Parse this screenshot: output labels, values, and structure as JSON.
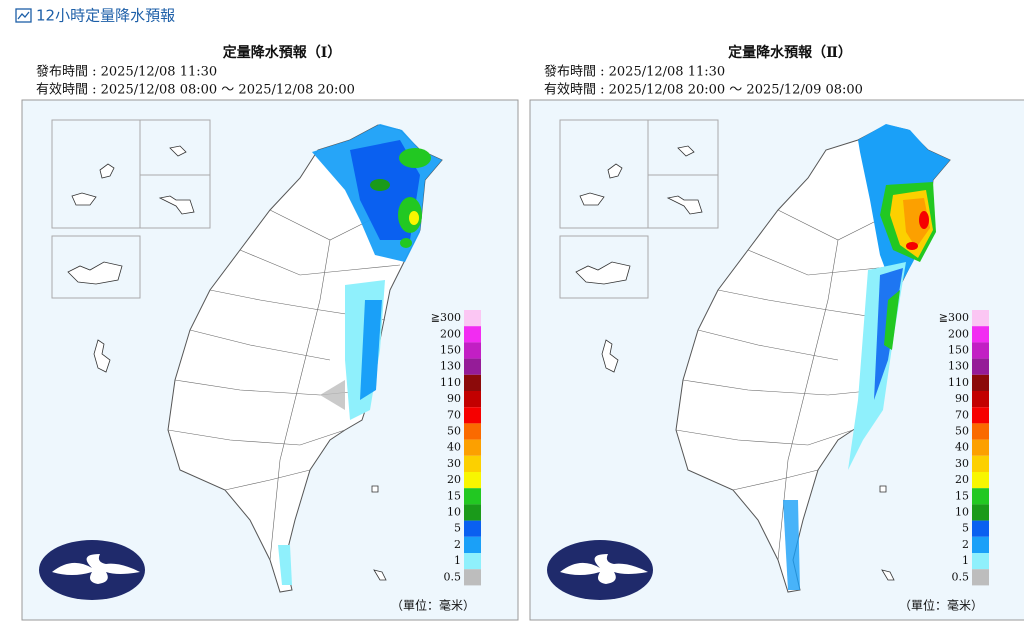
{
  "header": {
    "title": "12小時定量降水預報"
  },
  "panels": [
    {
      "title": "定量降水預報（Ⅰ）",
      "issued": "發布時間 : 2025/12/08 11:30",
      "valid": "有效時間 : 2025/12/08 08:00 ～ 2025/12/08 20:00"
    },
    {
      "title": "定量降水預報（Ⅱ）",
      "issued": "發布時間 : 2025/12/08 11:30",
      "valid": "有效時間 : 2025/12/08 20:00 ～ 2025/12/09 08:00"
    }
  ],
  "legend": {
    "labels": [
      "≧300",
      "200",
      "150",
      "130",
      "110",
      "90",
      "70",
      "50",
      "40",
      "30",
      "20",
      "15",
      "10",
      "5",
      "2",
      "1",
      "0.5"
    ],
    "colors": [
      "#fbc6f3",
      "#f22cf2",
      "#c21fc4",
      "#951c98",
      "#8c0a0a",
      "#c20000",
      "#f60000",
      "#fa6a00",
      "#fca000",
      "#fcd000",
      "#f8f600",
      "#22c822",
      "#1a9a1a",
      "#0a60f0",
      "#1aa0f8",
      "#8ff0fc",
      "#bdbdbd"
    ]
  },
  "unit": "（單位：毫米）"
}
